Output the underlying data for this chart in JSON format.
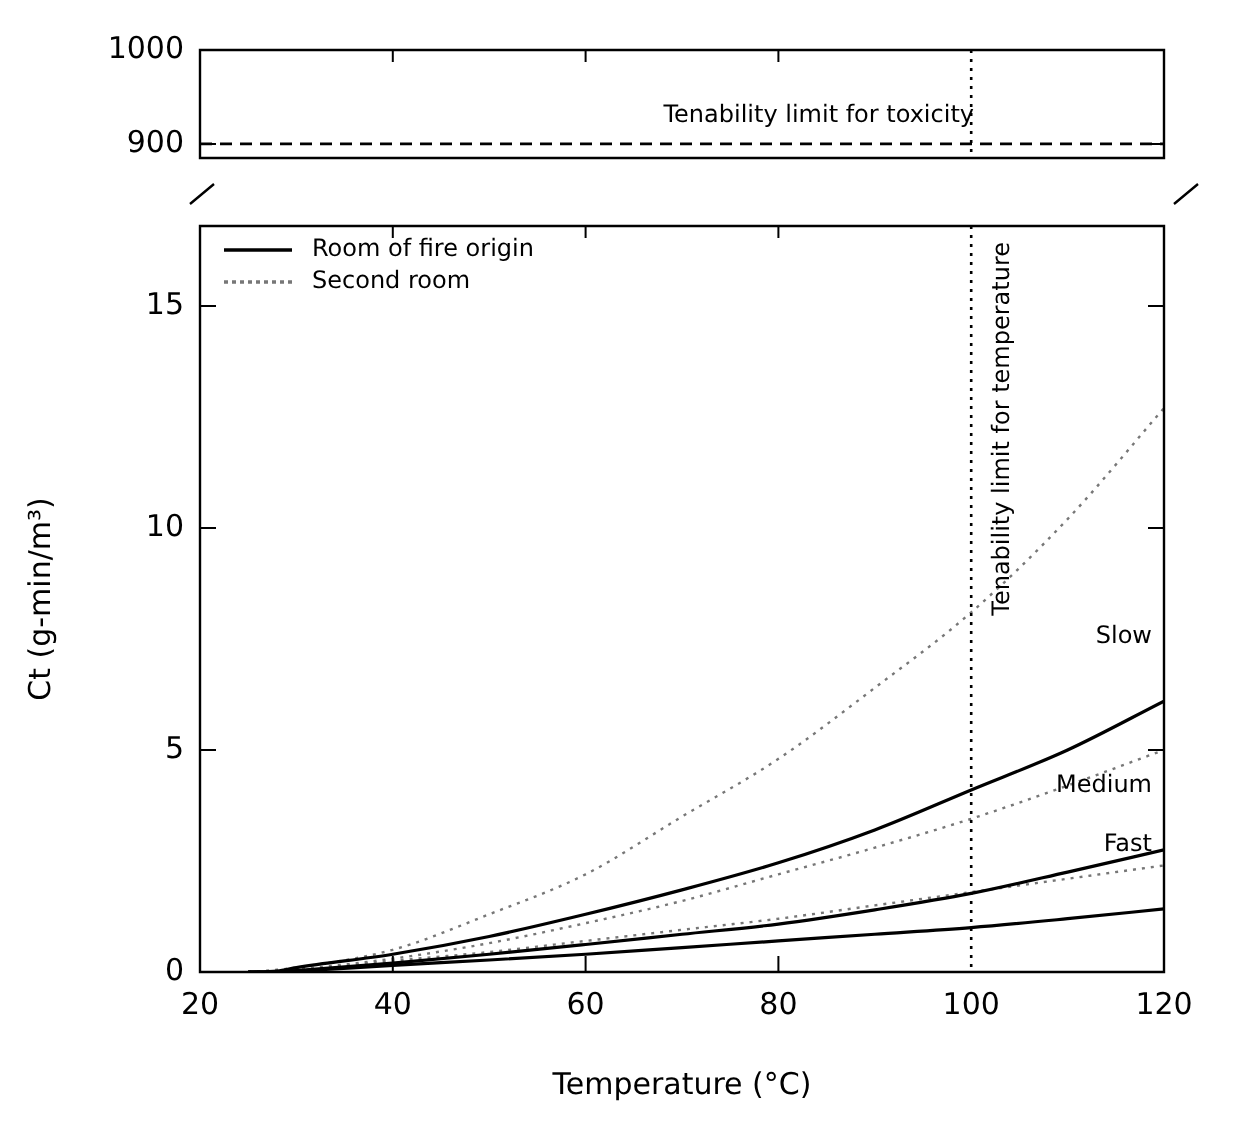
{
  "chart_data": [
    {
      "type": "line",
      "xlim": [
        20,
        120
      ],
      "xticks": [
        20,
        40,
        60,
        80,
        100,
        120
      ],
      "ylim": [
        885,
        1000
      ],
      "yticks": [
        900,
        1000
      ],
      "tick_labels": "y",
      "grid": false,
      "legend": false,
      "ref_lines": [
        {
          "axis": "y",
          "value": 900,
          "label": "Tenability limit for toxicity",
          "color": "#000000",
          "line_style": "dashed"
        },
        {
          "axis": "x",
          "value": 100,
          "color": "#000000",
          "line_style": "dotted"
        }
      ]
    },
    {
      "type": "line",
      "xlabel": "Temperature (°C)",
      "ylabel": "Ct (g-min/m³)",
      "xlim": [
        20,
        120
      ],
      "xticks": [
        20,
        40,
        60,
        80,
        100,
        120
      ],
      "ylim": [
        0,
        16.8
      ],
      "yticks": [
        0,
        5,
        10,
        15
      ],
      "grid": false,
      "legend": "top left",
      "marker": "none",
      "x": [
        25,
        28,
        30,
        40,
        50,
        60,
        70,
        80,
        90,
        100,
        110,
        120
      ],
      "series": [
        {
          "name": "Room of fire origin",
          "color": "#000000",
          "line_style": "solid",
          "values": [
            0,
            0.02,
            0.1,
            0.4,
            0.8,
            1.3,
            1.85,
            2.46,
            3.2,
            4.1,
            5.0,
            6.1
          ]
        },
        {
          "color": "#000000",
          "line_style": "solid",
          "values": [
            0,
            0,
            0.03,
            0.2,
            0.4,
            0.62,
            0.85,
            1.08,
            1.4,
            1.77,
            2.25,
            2.75
          ]
        },
        {
          "color": "#000000",
          "line_style": "solid",
          "values": [
            0,
            0,
            0.02,
            0.15,
            0.27,
            0.4,
            0.55,
            0.7,
            0.85,
            1.0,
            1.2,
            1.42
          ]
        },
        {
          "name": "Second room",
          "color": "#777777",
          "line_style": "dotted",
          "values": [
            0,
            0.05,
            0.1,
            0.5,
            1.3,
            2.2,
            3.5,
            4.8,
            6.4,
            8.1,
            10.2,
            12.7
          ]
        },
        {
          "color": "#777777",
          "line_style": "dotted",
          "values": [
            0,
            0,
            0.05,
            0.3,
            0.65,
            1.1,
            1.6,
            2.2,
            2.8,
            3.45,
            4.2,
            5.0
          ]
        },
        {
          "color": "#777777",
          "line_style": "dotted",
          "values": [
            0,
            0,
            0.03,
            0.25,
            0.45,
            0.7,
            0.95,
            1.2,
            1.5,
            1.8,
            2.1,
            2.4
          ]
        }
      ],
      "annotations": [
        "Slow",
        "Medium",
        "Fast"
      ],
      "ref_lines": [
        {
          "axis": "x",
          "value": 100,
          "label": "Tenability limit for temperature",
          "color": "#000000",
          "line_style": "dotted"
        }
      ]
    }
  ]
}
